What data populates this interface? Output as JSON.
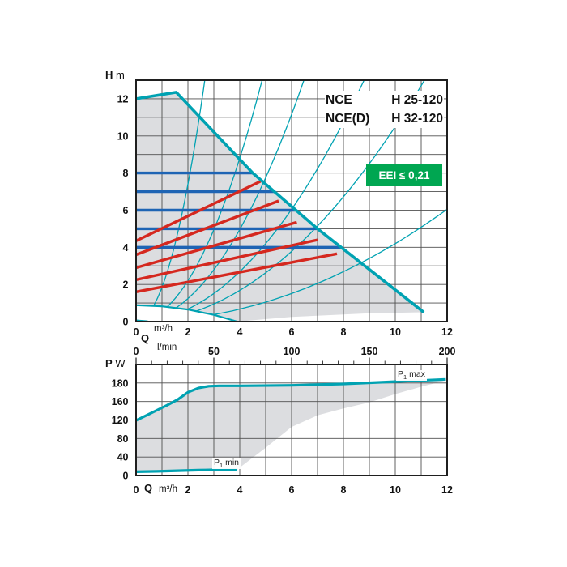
{
  "header": {
    "product_lines": [
      {
        "series": "NCE",
        "model": "H 25-120"
      },
      {
        "series": "NCE(D)",
        "model": "H 32-120"
      }
    ],
    "badge": {
      "text": "EEI ≤ 0,21",
      "color": "#00a651",
      "text_color": "#ffffff"
    }
  },
  "colors": {
    "teal": "#00a2b2",
    "blue": "#1e64b4",
    "red": "#d5281f",
    "fill": "#dcdde0",
    "grid": "#4f4f4f",
    "frame": "#1f1f1f",
    "text": "#111111"
  },
  "labels": {
    "head_quantity": "H",
    "head_unit": "m",
    "flow_quantity": "Q",
    "flow_unit_m3h": "m³/h",
    "flow_unit_lmin": "l/min",
    "power_quantity": "P",
    "power_unit": "W",
    "p1max": {
      "prefix": "P",
      "sub": "1",
      "suffix": " max"
    },
    "p1min": {
      "prefix": "P",
      "sub": "1",
      "suffix": " min"
    }
  },
  "chart_data": [
    {
      "id": "head_vs_flow",
      "type": "line",
      "xlabel": "Q (m³/h top scale, l/min lower scale)",
      "ylabel": "H (m)",
      "x_range_m3h": [
        0,
        12
      ],
      "x_range_lmin": [
        0,
        200
      ],
      "y_range": [
        0,
        13
      ],
      "grid": "on, 1 m³/h × 1 m",
      "x_ticks_m3h": [
        0,
        2,
        4,
        6,
        8,
        10,
        12
      ],
      "x_ticks_lmin": [
        0,
        50,
        100,
        150,
        200
      ],
      "y_ticks": [
        0,
        2,
        4,
        6,
        8,
        10,
        12
      ],
      "operating_region_outline": [
        [
          0,
          12
        ],
        [
          1.55,
          12.35
        ],
        [
          4.5,
          8
        ],
        [
          7,
          5
        ],
        [
          11.1,
          0.5
        ],
        [
          9,
          0.45
        ],
        [
          6,
          0.25
        ],
        [
          3.9,
          0
        ],
        [
          3,
          0.36
        ],
        [
          2,
          0.65
        ],
        [
          1,
          0.82
        ],
        [
          0,
          0.88
        ]
      ],
      "max_speed_envelope": [
        [
          0,
          12
        ],
        [
          1.55,
          12.35
        ],
        [
          4.5,
          8
        ],
        [
          7,
          5
        ],
        [
          11.1,
          0.5
        ]
      ],
      "min_speed_curve": [
        [
          0,
          0.88
        ],
        [
          1,
          0.82
        ],
        [
          2,
          0.65
        ],
        [
          3,
          0.36
        ],
        [
          3.9,
          0
        ]
      ],
      "origin_dash": [
        [
          0,
          0.07
        ],
        [
          0.45,
          0.02
        ]
      ],
      "constant_pressure_lines": [
        [
          [
            0,
            8
          ],
          [
            4.5,
            8
          ]
        ],
        [
          [
            0,
            7
          ],
          [
            5.33,
            7
          ]
        ],
        [
          [
            0,
            6
          ],
          [
            6.17,
            6
          ]
        ],
        [
          [
            0,
            5
          ],
          [
            7.0,
            5
          ]
        ],
        [
          [
            0,
            4
          ],
          [
            7.91,
            4
          ]
        ]
      ],
      "proportional_pressure_lines": [
        [
          [
            0,
            4.35
          ],
          [
            4.8,
            7.55
          ]
        ],
        [
          [
            0,
            3.6
          ],
          [
            5.5,
            6.5
          ]
        ],
        [
          [
            0,
            2.9
          ],
          [
            6.2,
            5.35
          ]
        ],
        [
          [
            0,
            2.25
          ],
          [
            7.0,
            4.4
          ]
        ],
        [
          [
            0,
            1.6
          ],
          [
            7.75,
            3.65
          ]
        ]
      ],
      "system_parabola_k": [
        1.85,
        0.55,
        0.31,
        0.168,
        0.105,
        0.042
      ]
    },
    {
      "id": "power_vs_flow",
      "type": "line",
      "xlabel": "Q (m³/h)",
      "ylabel": "P (W)",
      "x_range_m3h": [
        0,
        12
      ],
      "y_ticks": [
        0,
        40,
        80,
        120,
        160,
        180
      ],
      "y_top_frame_value": 200,
      "x_ticks_m3h": [
        0,
        2,
        4,
        6,
        8,
        10,
        12
      ],
      "grid": "on, 1 m³/h × 1 tick row",
      "lmin_ruler": {
        "minor_step": 10,
        "major_step": 50,
        "max": 200
      },
      "p1_max_curve": [
        [
          0,
          119
        ],
        [
          0.4,
          130
        ],
        [
          0.8,
          141
        ],
        [
          1.2,
          152
        ],
        [
          1.6,
          162
        ],
        [
          2.0,
          170
        ],
        [
          2.4,
          174.5
        ],
        [
          2.8,
          176.5
        ],
        [
          3.2,
          177
        ],
        [
          4,
          177
        ],
        [
          6,
          177.5
        ],
        [
          8,
          179
        ],
        [
          10,
          181.5
        ],
        [
          11.95,
          184
        ]
      ],
      "p1_min_curve": [
        [
          0,
          8
        ],
        [
          0.8,
          9
        ],
        [
          1.6,
          10.3
        ],
        [
          2.4,
          11.5
        ],
        [
          3.2,
          12.5
        ],
        [
          3.9,
          13
        ]
      ],
      "power_region_outline": [
        [
          0,
          119
        ],
        [
          0.4,
          130
        ],
        [
          0.8,
          141
        ],
        [
          1.2,
          152
        ],
        [
          1.6,
          162
        ],
        [
          2.0,
          170
        ],
        [
          2.4,
          174.5
        ],
        [
          2.8,
          176.5
        ],
        [
          3.2,
          177
        ],
        [
          4,
          177
        ],
        [
          6,
          177.5
        ],
        [
          8,
          179
        ],
        [
          10,
          181.5
        ],
        [
          12,
          183
        ],
        [
          11,
          176
        ],
        [
          10,
          168
        ],
        [
          9,
          158
        ],
        [
          8,
          145
        ],
        [
          7,
          130
        ],
        [
          6,
          105
        ],
        [
          5,
          60
        ],
        [
          3.9,
          13
        ],
        [
          3.2,
          12.5
        ],
        [
          2.4,
          11.5
        ],
        [
          1.6,
          10.3
        ],
        [
          0.8,
          9
        ],
        [
          0,
          8
        ]
      ]
    }
  ]
}
